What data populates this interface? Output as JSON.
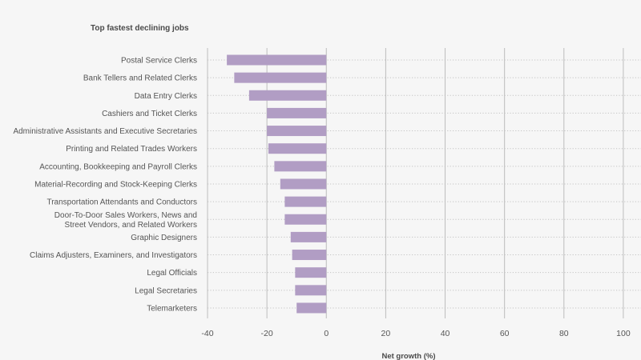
{
  "chart_data": {
    "type": "bar",
    "orientation": "horizontal",
    "title": "Top fastest declining jobs",
    "xlabel": "Net growth (%)",
    "ylabel": "",
    "xlim": [
      -40,
      110
    ],
    "xticks": [
      -40,
      -20,
      0,
      20,
      40,
      60,
      80,
      100
    ],
    "grid": true,
    "legend": "none",
    "bar_color": "#b19dc4",
    "categories": [
      [
        "Postal Service Clerks"
      ],
      [
        "Bank Tellers and Related Clerks"
      ],
      [
        "Data Entry Clerks"
      ],
      [
        "Cashiers and Ticket Clerks"
      ],
      [
        "Administrative Assistants and Executive Secretaries"
      ],
      [
        "Printing and Related Trades Workers"
      ],
      [
        "Accounting, Bookkeeping and Payroll Clerks"
      ],
      [
        "Material-Recording and Stock-Keeping Clerks"
      ],
      [
        "Transportation Attendants and Conductors"
      ],
      [
        "Door-To-Door Sales Workers, News and",
        "Street Vendors, and Related Workers"
      ],
      [
        "Graphic Designers"
      ],
      [
        "Claims Adjusters, Examiners, and Investigators"
      ],
      [
        "Legal Officials"
      ],
      [
        "Legal Secretaries"
      ],
      [
        "Telemarketers"
      ]
    ],
    "values": [
      -33.5,
      -31,
      -26,
      -20,
      -20,
      -19.5,
      -17.5,
      -15.5,
      -14,
      -14,
      -12,
      -11.5,
      -10.5,
      -10.5,
      -10
    ]
  }
}
